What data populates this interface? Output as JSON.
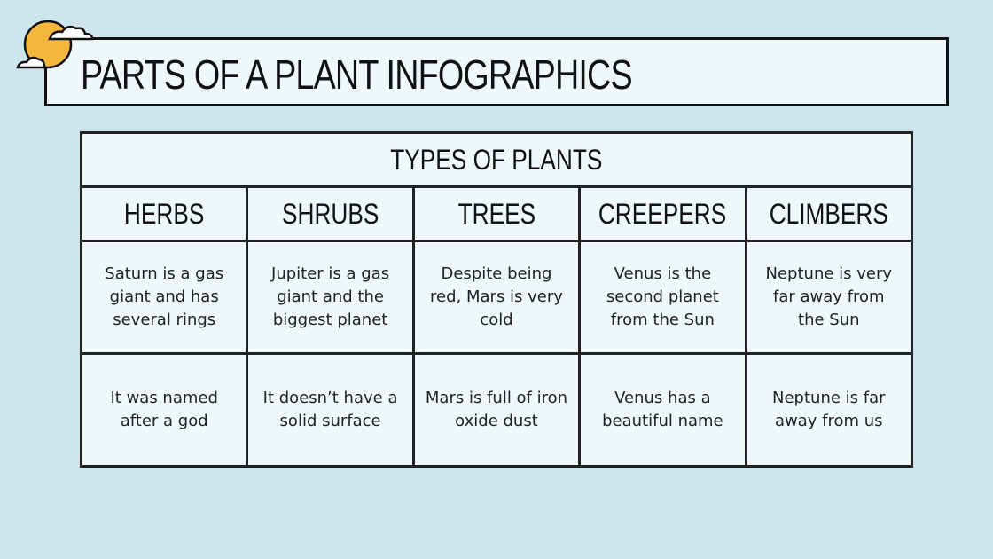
{
  "title": "PARTS OF A PLANT INFOGRAPHICS",
  "icons": {
    "decoration": "sun-with-clouds-icon"
  },
  "colors": {
    "background": "#cde6ee",
    "panel": "#eef7fa",
    "sun": "#f4b73c",
    "border": "#111111"
  },
  "table": {
    "caption": "TYPES OF PLANTS",
    "headers": [
      "HERBS",
      "SHRUBS",
      "TREES",
      "CREEPERS",
      "CLIMBERS"
    ],
    "rows": [
      [
        "Saturn is a gas giant and has several rings",
        "Jupiter is a gas giant and the biggest planet",
        "Despite being red, Mars is very cold",
        "Venus is the second planet from the Sun",
        "Neptune is very far away from the Sun"
      ],
      [
        "It was named after a god",
        "It doesn’t have a solid surface",
        "Mars is full of iron oxide dust",
        "Venus has a beautiful name",
        "Neptune is far away from us"
      ]
    ]
  }
}
